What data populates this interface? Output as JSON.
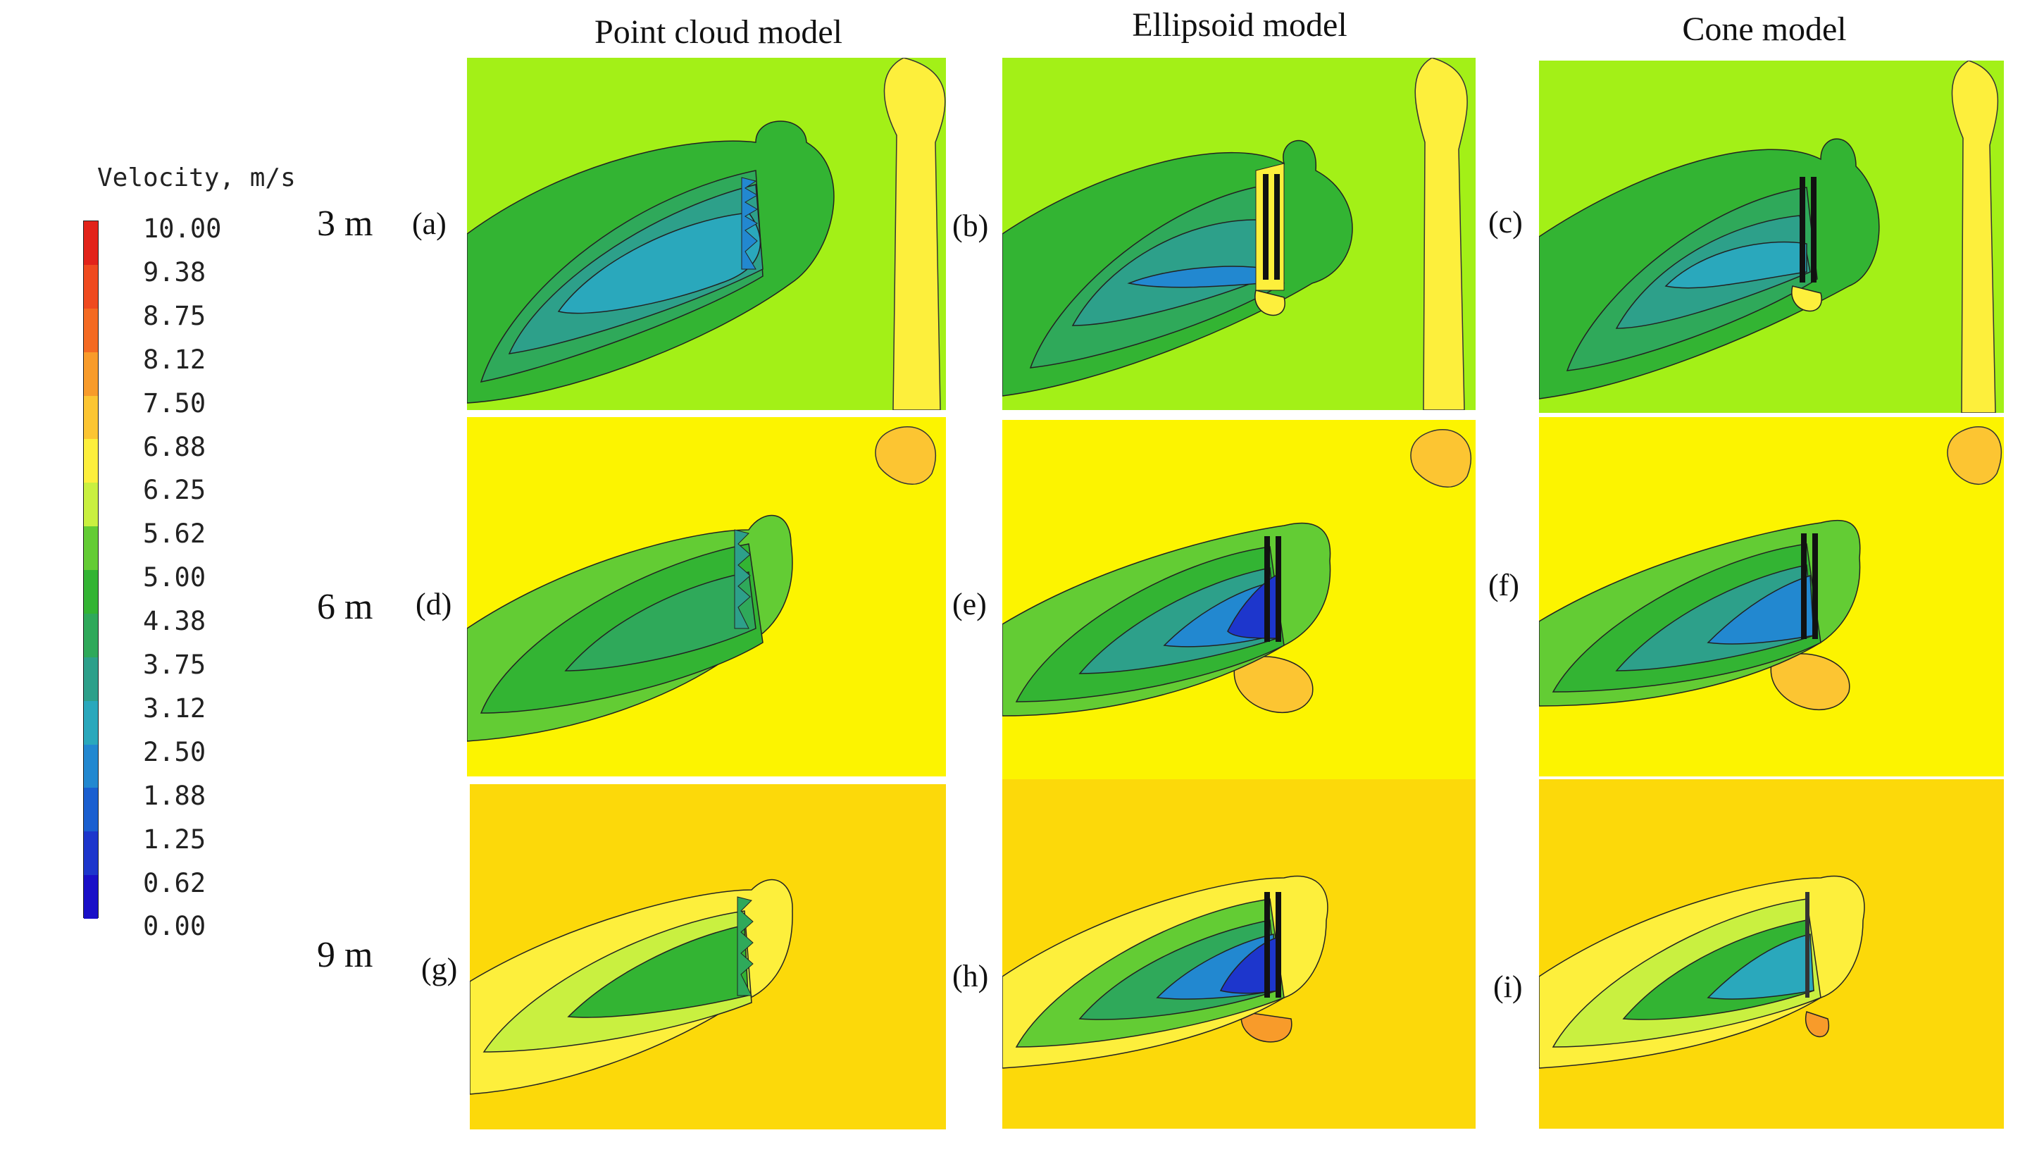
{
  "columns": [
    "Point cloud model",
    "Ellipsoid model",
    "Cone model"
  ],
  "rows": [
    "3 m",
    "6 m",
    "9 m"
  ],
  "panel_labels": [
    "(a)",
    "(b)",
    "(c)",
    "(d)",
    "(e)",
    "(f)",
    "(g)",
    "(h)",
    "(i)"
  ],
  "legend": {
    "title": "Velocity, m/s",
    "values": [
      "10.00",
      "9.38",
      "8.75",
      "8.12",
      "7.50",
      "6.88",
      "6.25",
      "5.62",
      "5.00",
      "4.38",
      "3.75",
      "3.12",
      "2.50",
      "1.88",
      "1.25",
      "0.62",
      "0.00"
    ],
    "colors": [
      "#e2231a",
      "#ef4a1f",
      "#f46a22",
      "#f89b2a",
      "#fcc532",
      "#fdef3c",
      "#c9f040",
      "#63cc34",
      "#33b433",
      "#2fa95a",
      "#2da08a",
      "#2aa8bc",
      "#2288d0",
      "#1a5fd0",
      "#1d36cc",
      "#1a10c8"
    ]
  },
  "panel_colors": {
    "row1_background": "#a3f017",
    "row2_background": "#fcf400",
    "row3_background": "#fcd90a"
  }
}
